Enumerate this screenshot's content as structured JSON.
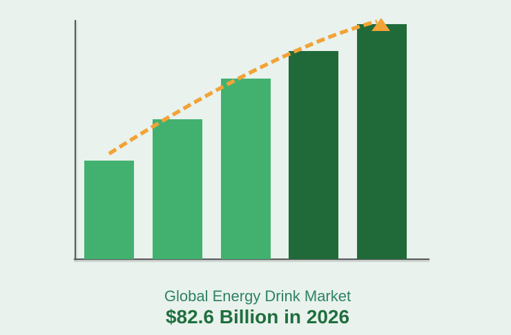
{
  "chart_data": {
    "type": "bar",
    "categories": [
      "",
      "",
      "",
      "",
      ""
    ],
    "values": [
      34.6,
      49.1,
      63.5,
      73.1,
      82.6
    ],
    "value_note": "USD billions; only final 2026 value labeled, others estimated from bar heights",
    "title": "Global Energy Drink Market",
    "subtitle": "$82.6 Billion in 2026",
    "ylim": [
      0,
      90
    ],
    "grid": false,
    "legend": false,
    "bar_colors": [
      "#42b170",
      "#42b170",
      "#42b170",
      "#206a3a",
      "#206a3a"
    ],
    "trend_line": {
      "style": "dashed",
      "color": "#f2a338",
      "arrow": "up",
      "direction": "increasing"
    }
  },
  "caption": {
    "line1": "Global Energy Drink Market",
    "line2": "$82.6 Billion in 2026"
  },
  "colors": {
    "background": "#e9f2ed",
    "axis": "#59595b",
    "bar_light_green": "#42b170",
    "bar_dark_green": "#206a3a",
    "trend_orange": "#f2a338",
    "title_text": "#2f8263",
    "value_text": "#206f3e"
  }
}
